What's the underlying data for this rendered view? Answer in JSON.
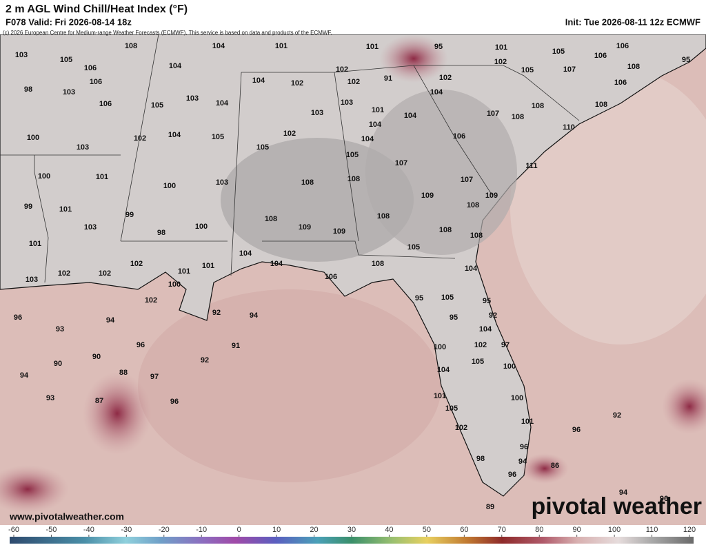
{
  "header": {
    "title": "2 m AGL Wind Chill/Heat Index (°F)",
    "valid": "F078 Valid: Fri 2026-08-14 18z",
    "init": "Init: Tue 2026-08-11 12z ECMWF",
    "credit": "(c) 2026 European Centre for Medium-range Weather Forecasts (ECMWF). This service is based on data and products of the ECMWF."
  },
  "map_labels": [
    103,
    105,
    106,
    108,
    104,
    101,
    101,
    95,
    101,
    105,
    106,
    106,
    95,
    98,
    103,
    106,
    104,
    102,
    102,
    105,
    107,
    108,
    106,
    105,
    103,
    104,
    104,
    102,
    102,
    91,
    102,
    104,
    106,
    103,
    103,
    101,
    104,
    107,
    108,
    108,
    108,
    100,
    103,
    102,
    104,
    105,
    102,
    104,
    104,
    106,
    110,
    105,
    105,
    107,
    111,
    100,
    101,
    100,
    103,
    108,
    108,
    107,
    109,
    109,
    108,
    99,
    101,
    99,
    103,
    98,
    100,
    108,
    109,
    109,
    108,
    108,
    108,
    101,
    105,
    104,
    104,
    102,
    101,
    101,
    108,
    104,
    102,
    102,
    103,
    100,
    106,
    102,
    95,
    105,
    95,
    96,
    94,
    92,
    94,
    95,
    92,
    93,
    104,
    96,
    91,
    102,
    97,
    100,
    90,
    90,
    92,
    105,
    100,
    88,
    97,
    104,
    94,
    93,
    87,
    96,
    101,
    100,
    105,
    92,
    101,
    96,
    102,
    96,
    94,
    98,
    86,
    96,
    94,
    96,
    89
  ],
  "footer": {
    "website": "www.pivotalweather.com",
    "logo": "pivotal weather"
  },
  "colorbar": {
    "ticks": [
      -60,
      -50,
      -40,
      -30,
      -20,
      -10,
      0,
      10,
      20,
      30,
      40,
      50,
      60,
      70,
      80,
      90,
      100,
      110,
      120
    ]
  }
}
